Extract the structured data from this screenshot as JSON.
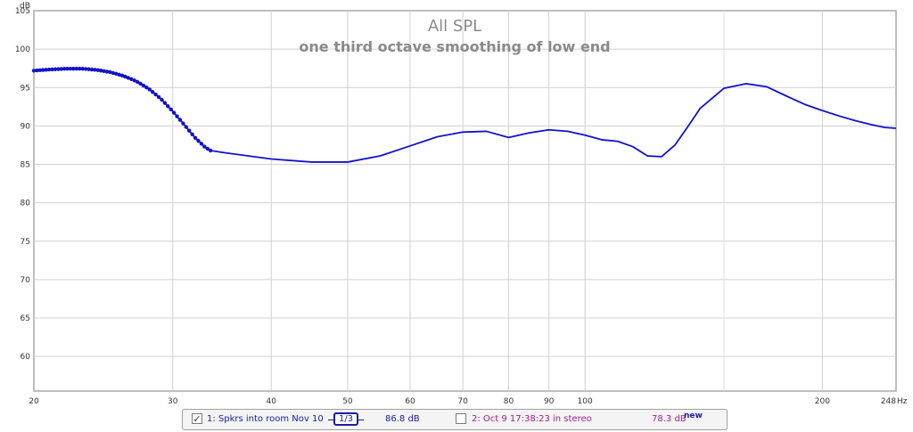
{
  "chart_data": {
    "type": "line",
    "title": "All SPL",
    "subtitle": "one third octave smoothing of low end",
    "ylabel": "dB",
    "xlabel": "Hz",
    "x_scale": "log",
    "xlim": [
      20,
      248
    ],
    "ylim": [
      55.5,
      105
    ],
    "grid": true,
    "y_ticks": [
      "105",
      "100",
      "95",
      "90",
      "85",
      "80",
      "75",
      "70",
      "65",
      "60"
    ],
    "x_ticks": [
      "20",
      "30",
      "40",
      "50",
      "60",
      "70",
      "80",
      "90",
      "100",
      "200",
      "248"
    ],
    "x_tick_values": [
      20,
      30,
      40,
      50,
      60,
      70,
      80,
      90,
      100,
      200,
      248
    ],
    "y_tick_values": [
      105,
      100,
      95,
      90,
      85,
      80,
      75,
      70,
      65,
      60
    ],
    "x_minor_values": [
      150
    ],
    "series": [
      {
        "name": "1: Spkrs into room Nov 10",
        "color": "#1212c8",
        "dotted_until_x": 33.5,
        "x": [
          20,
          21,
          22,
          23,
          24,
          25,
          26,
          27,
          28,
          29,
          30,
          31,
          32,
          33,
          33.5,
          35,
          40,
          45,
          50,
          55,
          60,
          65,
          70,
          75,
          80,
          85,
          90,
          95,
          100,
          105,
          110,
          115,
          120,
          125,
          130,
          135,
          140,
          150,
          160,
          170,
          180,
          190,
          200,
          210,
          220,
          230,
          240,
          248
        ],
        "y": [
          97.2,
          97.35,
          97.45,
          97.45,
          97.3,
          97.0,
          96.5,
          95.8,
          94.8,
          93.5,
          91.9,
          90.2,
          88.5,
          87.2,
          86.8,
          86.5,
          85.7,
          85.3,
          85.3,
          86.1,
          87.4,
          88.6,
          89.2,
          89.3,
          88.5,
          89.1,
          89.5,
          89.3,
          88.8,
          88.2,
          88.0,
          87.3,
          86.1,
          86.0,
          87.5,
          89.9,
          92.3,
          94.9,
          95.5,
          95.1,
          93.9,
          92.8,
          92.0,
          91.3,
          90.7,
          90.2,
          89.8,
          89.7
        ]
      }
    ]
  },
  "legend": {
    "item1_label": "1: Spkrs into room Nov 10",
    "item1_checked": true,
    "smoothing": "1/3",
    "item1_value": "86.8 dB",
    "item2_label": "2: Oct 9 17:38:23 in stereo",
    "item2_checked": false,
    "item2_value": "78.3 dB",
    "new_badge": "new",
    "item1_color": "#1a1aa0",
    "item2_color": "#a02090"
  }
}
